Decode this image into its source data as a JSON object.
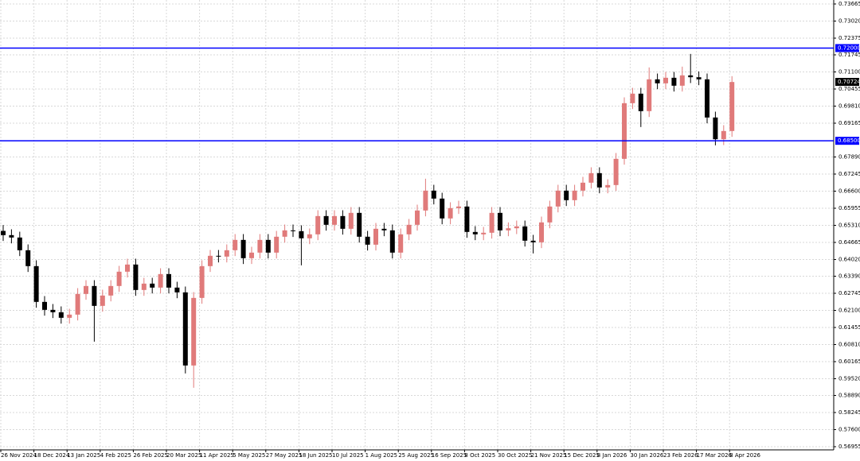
{
  "chart_data": {
    "type": "candlestick",
    "categories": [
      "26 Nov 2024",
      null,
      null,
      null,
      "18 Dec 2024",
      null,
      null,
      null,
      "13 Jan 2025",
      null,
      null,
      null,
      "4 Feb 2025",
      null,
      null,
      null,
      "26 Feb 2025",
      null,
      null,
      null,
      "20 Mar 2025",
      null,
      null,
      null,
      "11 Apr 2025",
      null,
      null,
      null,
      "5 May 2025",
      null,
      null,
      null,
      "27 May 2025",
      null,
      null,
      null,
      "18 Jun 2025",
      null,
      null,
      null,
      "10 Jul 2025",
      null,
      null,
      null,
      "1 Aug 2025",
      null,
      null,
      null,
      "25 Aug 2025",
      null,
      null,
      null,
      "16 Sep 2025",
      null,
      null,
      null,
      "8 Oct 2025",
      null,
      null,
      null,
      "30 Oct 2025",
      null,
      null,
      null,
      "21 Nov 2025",
      null,
      null,
      null,
      "15 Dec 2025",
      null,
      null,
      null,
      "8 Jan 2026",
      null,
      null,
      null,
      "30 Jan 2026",
      null,
      null,
      null,
      "23 Feb 2026",
      null,
      null,
      null,
      "17 Mar 2026",
      null,
      null,
      null,
      "8 Apr 2026"
    ],
    "open": [
      0.651,
      0.6494,
      0.6485,
      0.6437,
      0.6377,
      0.6242,
      0.6212,
      0.6203,
      0.6182,
      0.6194,
      0.6272,
      0.6302,
      0.6227,
      0.6266,
      0.6302,
      0.6356,
      0.6383,
      0.6287,
      0.6311,
      0.6296,
      0.6347,
      0.6296,
      0.6278,
      0.6002,
      0.6257,
      0.6377,
      0.6416,
      0.6413,
      0.6437,
      0.6476,
      0.6407,
      0.6428,
      0.6476,
      0.6428,
      0.6488,
      0.6512,
      0.6509,
      0.6482,
      0.6497,
      0.6566,
      0.6533,
      0.6566,
      0.6518,
      0.6578,
      0.6488,
      0.6458,
      0.6518,
      0.6512,
      0.6428,
      0.6497,
      0.6533,
      0.6587,
      0.6662,
      0.6632,
      0.6557,
      0.6596,
      0.6602,
      0.6506,
      0.6497,
      0.6503,
      0.6578,
      0.6512,
      0.652,
      0.6527,
      0.6473,
      0.6467,
      0.6542,
      0.6602,
      0.6662,
      0.6626,
      0.6662,
      0.6692,
      0.6728,
      0.6674,
      0.6683,
      0.6782,
      0.6992,
      0.7028,
      0.6962,
      0.7082,
      0.7067,
      0.7088,
      0.7058,
      0.7097,
      0.709,
      0.7082,
      0.6938,
      0.6856,
      0.6887
    ],
    "high": [
      0.6532,
      0.6516,
      0.6507,
      0.6459,
      0.6399,
      0.6264,
      0.6234,
      0.6225,
      0.6216,
      0.6294,
      0.6324,
      0.6324,
      0.6288,
      0.6324,
      0.6378,
      0.6405,
      0.6405,
      0.6333,
      0.6333,
      0.6369,
      0.6369,
      0.6318,
      0.63,
      0.6279,
      0.6399,
      0.6438,
      0.6438,
      0.6459,
      0.6498,
      0.6498,
      0.645,
      0.6498,
      0.6498,
      0.651,
      0.6534,
      0.6534,
      0.6531,
      0.6519,
      0.6588,
      0.6588,
      0.6588,
      0.6588,
      0.66,
      0.66,
      0.651,
      0.654,
      0.654,
      0.6534,
      0.6519,
      0.6555,
      0.6609,
      0.6707,
      0.6684,
      0.6654,
      0.6618,
      0.6624,
      0.6624,
      0.6528,
      0.6525,
      0.66,
      0.66,
      0.6542,
      0.6549,
      0.6549,
      0.6495,
      0.6564,
      0.6624,
      0.6684,
      0.6684,
      0.6684,
      0.6714,
      0.675,
      0.675,
      0.6705,
      0.6804,
      0.7014,
      0.705,
      0.705,
      0.7127,
      0.7104,
      0.711,
      0.711,
      0.713,
      0.7178,
      0.7112,
      0.7104,
      0.696,
      0.6909,
      0.7094
    ],
    "low": [
      0.6472,
      0.6463,
      0.6415,
      0.6355,
      0.622,
      0.619,
      0.6181,
      0.616,
      0.616,
      0.6172,
      0.625,
      0.6092,
      0.6205,
      0.6244,
      0.628,
      0.6334,
      0.6265,
      0.6265,
      0.6274,
      0.6274,
      0.6274,
      0.6256,
      0.5972,
      0.5918,
      0.6235,
      0.6355,
      0.6391,
      0.6391,
      0.6415,
      0.6385,
      0.6385,
      0.6406,
      0.6406,
      0.6406,
      0.6466,
      0.6487,
      0.638,
      0.646,
      0.6475,
      0.6511,
      0.6511,
      0.6496,
      0.6496,
      0.6466,
      0.6436,
      0.6436,
      0.649,
      0.6406,
      0.6406,
      0.6475,
      0.6511,
      0.6565,
      0.661,
      0.6535,
      0.6535,
      0.6574,
      0.6484,
      0.6475,
      0.6475,
      0.6481,
      0.649,
      0.649,
      0.6498,
      0.6451,
      0.6425,
      0.6445,
      0.652,
      0.658,
      0.6604,
      0.6604,
      0.664,
      0.667,
      0.6652,
      0.6652,
      0.6661,
      0.676,
      0.697,
      0.6902,
      0.694,
      0.7045,
      0.7045,
      0.7036,
      0.7036,
      0.7068,
      0.706,
      0.6916,
      0.6833,
      0.6834,
      0.6865
    ],
    "close": [
      0.6494,
      0.6485,
      0.6437,
      0.6377,
      0.6242,
      0.6212,
      0.6203,
      0.6182,
      0.6194,
      0.6272,
      0.6302,
      0.6227,
      0.6266,
      0.6302,
      0.6356,
      0.6383,
      0.6287,
      0.6311,
      0.6296,
      0.6347,
      0.6296,
      0.6278,
      0.6002,
      0.6257,
      0.6377,
      0.6416,
      0.6413,
      0.6437,
      0.6476,
      0.6407,
      0.6428,
      0.6476,
      0.6428,
      0.6488,
      0.6512,
      0.6509,
      0.6482,
      0.6497,
      0.6566,
      0.6533,
      0.6566,
      0.6518,
      0.6578,
      0.6488,
      0.6458,
      0.6518,
      0.6512,
      0.6428,
      0.6497,
      0.6533,
      0.6587,
      0.6662,
      0.6632,
      0.6557,
      0.6596,
      0.6602,
      0.6506,
      0.6497,
      0.6503,
      0.6578,
      0.6512,
      0.652,
      0.6527,
      0.6473,
      0.6467,
      0.6542,
      0.6602,
      0.6662,
      0.6626,
      0.6662,
      0.6692,
      0.6728,
      0.6674,
      0.6683,
      0.6782,
      0.6992,
      0.7028,
      0.6962,
      0.7082,
      0.7067,
      0.7088,
      0.7058,
      0.7097,
      0.709,
      0.7082,
      0.6938,
      0.6856,
      0.6887,
      0.7072
    ],
    "up_color": "#e07a7a",
    "down_color": "#000000",
    "ylim": [
      0.56835,
      0.73815
    ],
    "yticks": [
      0.73665,
      {
        "value": 0.7302,
        "label": "0.73020"
      },
      0.72375,
      0.71745,
      {
        "value": 0.711,
        "label": "0.71100"
      },
      0.70455,
      {
        "value": 0.6981,
        "label": "0.69810"
      },
      0.69165,
      {
        "value": 0.6789,
        "label": "0.67890"
      },
      0.67245,
      {
        "value": 0.666,
        "label": "0.66600"
      },
      0.65955,
      {
        "value": 0.6531,
        "label": "0.65310"
      },
      0.64665,
      {
        "value": 0.6402,
        "label": "0.64020"
      },
      {
        "value": 0.6339,
        "label": "0.63390"
      },
      0.62745,
      {
        "value": 0.621,
        "label": "0.62100"
      },
      0.61455,
      {
        "value": 0.6081,
        "label": "0.60810"
      },
      0.60165,
      {
        "value": 0.5952,
        "label": "0.59520"
      },
      {
        "value": 0.5889,
        "label": "0.58890"
      },
      0.58245,
      {
        "value": 0.576,
        "label": "0.57600"
      },
      0.56955
    ],
    "grid": true,
    "hlines": [
      {
        "value": 0.72,
        "label": "0.72000",
        "color": "#0000ff"
      },
      {
        "value": 0.685,
        "label": "0.68500",
        "color": "#0000ff"
      }
    ],
    "price_label": {
      "value": 0.70724,
      "label": "0.70724",
      "color": "#000000"
    }
  }
}
